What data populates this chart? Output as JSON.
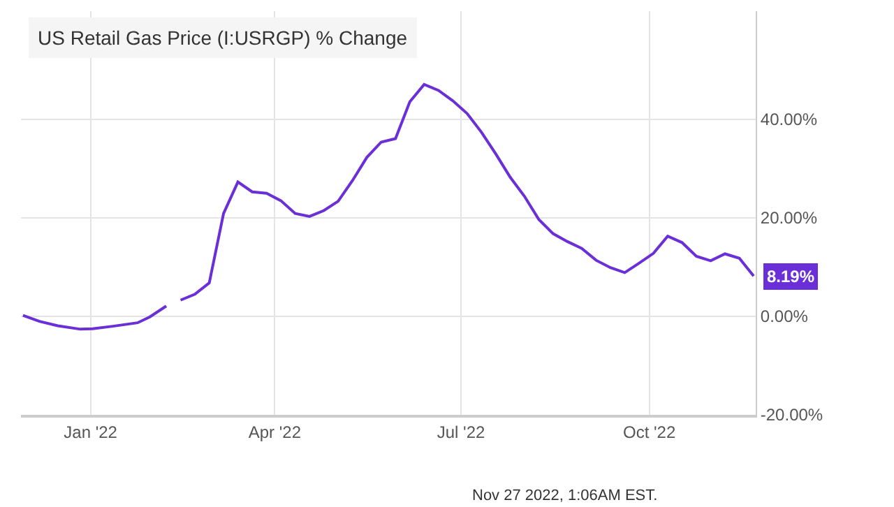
{
  "chart_data": {
    "type": "line",
    "title": "US Retail Gas Price (I:USRGP) % Change",
    "x": [
      "2021-11-29",
      "2021-12-07",
      "2021-12-16",
      "2021-12-27",
      "2022-01-02",
      "2022-01-12",
      "2022-01-24",
      "2022-01-30",
      "2022-02-07",
      "2022-02-10",
      "2022-02-14",
      "2022-02-21",
      "2022-02-28",
      "2022-03-07",
      "2022-03-14",
      "2022-03-21",
      "2022-03-28",
      "2022-04-04",
      "2022-04-11",
      "2022-04-18",
      "2022-04-25",
      "2022-05-02",
      "2022-05-09",
      "2022-05-16",
      "2022-05-23",
      "2022-05-30",
      "2022-06-06",
      "2022-06-13",
      "2022-06-20",
      "2022-06-27",
      "2022-07-04",
      "2022-07-11",
      "2022-07-18",
      "2022-07-25",
      "2022-08-01",
      "2022-08-08",
      "2022-08-15",
      "2022-08-22",
      "2022-08-29",
      "2022-09-05",
      "2022-09-12",
      "2022-09-19",
      "2022-09-26",
      "2022-10-03",
      "2022-10-10",
      "2022-10-17",
      "2022-10-24",
      "2022-10-31",
      "2022-11-07",
      "2022-11-14",
      "2022-11-21"
    ],
    "series": [
      {
        "color": "#6a2fd6",
        "values": [
          0.2,
          -1.0,
          -1.9,
          -2.6,
          -2.5,
          -2.0,
          -1.3,
          -0.1,
          2.1,
          null,
          3.3,
          4.5,
          6.8,
          20.9,
          27.3,
          25.3,
          25.0,
          23.5,
          20.9,
          20.3,
          21.5,
          23.4,
          27.6,
          32.3,
          35.4,
          36.1,
          43.6,
          47.1,
          45.9,
          43.8,
          41.2,
          37.4,
          33.0,
          28.3,
          24.4,
          19.7,
          16.8,
          15.2,
          13.8,
          11.4,
          9.9,
          8.9,
          10.8,
          12.8,
          16.3,
          15.0,
          12.2,
          11.3,
          12.7,
          11.8,
          8.19
        ]
      }
    ],
    "xlim": [
      "2021-11-28",
      "2022-11-22"
    ],
    "xticks": [
      {
        "value": "2022-01-01",
        "label": "Jan '22"
      },
      {
        "value": "2022-04-01",
        "label": "Apr '22"
      },
      {
        "value": "2022-07-01",
        "label": "Jul '22"
      },
      {
        "value": "2022-10-01",
        "label": "Oct '22"
      }
    ],
    "ylim": [
      -20,
      62
    ],
    "yticks": [
      {
        "value": -20,
        "label": "-20.00%"
      },
      {
        "value": 0,
        "label": "0.00%"
      },
      {
        "value": 20,
        "label": "20.00%"
      },
      {
        "value": 40,
        "label": "40.00%"
      }
    ],
    "annotations": [
      {
        "text": "8.19%",
        "x": "2022-11-21",
        "y": 8.19
      },
      "Nov 27 2022, 1:06AM EST."
    ],
    "grid": true,
    "legend": false,
    "marker": "none",
    "line_style": "solid"
  }
}
